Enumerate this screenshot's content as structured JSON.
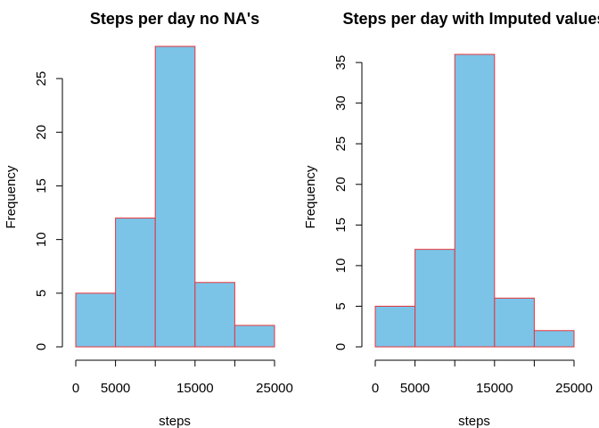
{
  "chart_data": [
    {
      "type": "bar",
      "title": "Steps per day no NA's",
      "xlabel": "steps",
      "ylabel": "Frequency",
      "bins": [
        [
          0,
          5000
        ],
        [
          5000,
          10000
        ],
        [
          10000,
          15000
        ],
        [
          15000,
          20000
        ],
        [
          20000,
          25000
        ]
      ],
      "values": [
        5,
        12,
        28,
        6,
        2
      ],
      "xlim": [
        0,
        25000
      ],
      "ylim": [
        0,
        28
      ],
      "xticks": [
        0,
        5000,
        10000,
        15000,
        20000,
        25000
      ],
      "xtick_labels": [
        "0",
        "5000",
        "",
        "15000",
        "",
        "25000"
      ],
      "yticks": [
        0,
        5,
        10,
        15,
        20,
        25
      ],
      "ytick_labels": [
        "0",
        "5",
        "10",
        "15",
        "20",
        "25"
      ],
      "bar_fill": "#7bc4e8",
      "bar_stroke": "#e8333a",
      "grid": false,
      "legend": "none"
    },
    {
      "type": "bar",
      "title": "Steps per day with Imputed values",
      "xlabel": "steps",
      "ylabel": "Frequency",
      "bins": [
        [
          0,
          5000
        ],
        [
          5000,
          10000
        ],
        [
          10000,
          15000
        ],
        [
          15000,
          20000
        ],
        [
          20000,
          25000
        ]
      ],
      "values": [
        5,
        12,
        36,
        6,
        2
      ],
      "xlim": [
        0,
        25000
      ],
      "ylim": [
        0,
        36
      ],
      "xticks": [
        0,
        5000,
        10000,
        15000,
        20000,
        25000
      ],
      "xtick_labels": [
        "0",
        "5000",
        "",
        "15000",
        "",
        "25000"
      ],
      "yticks": [
        0,
        5,
        10,
        15,
        20,
        25,
        30,
        35
      ],
      "ytick_labels": [
        "0",
        "5",
        "10",
        "15",
        "20",
        "25",
        "30",
        "35"
      ],
      "bar_fill": "#7bc4e8",
      "bar_stroke": "#e8333a",
      "grid": false,
      "legend": "none"
    }
  ]
}
